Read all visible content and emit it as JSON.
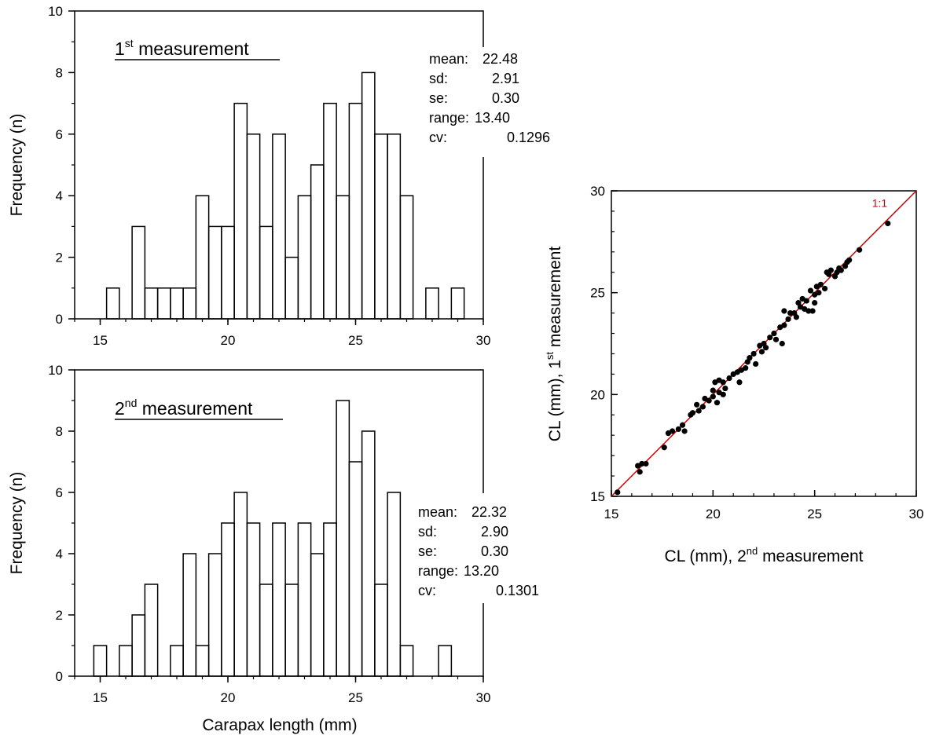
{
  "chart_data": [
    {
      "type": "histogram",
      "title": "1st measurement",
      "title_main": "1",
      "title_sup": "st",
      "title_rest": " measurement",
      "xlabel": "",
      "ylabel": "Frequency (n)",
      "xlim": [
        14,
        30
      ],
      "ylim": [
        0,
        10
      ],
      "xticks": [
        "15",
        "20",
        "25",
        "30"
      ],
      "yticks": [
        "0",
        "2",
        "4",
        "6",
        "8",
        "10"
      ],
      "bin_width": 0.5,
      "bin_start": 15.25,
      "counts": [
        1,
        0,
        3,
        1,
        1,
        1,
        1,
        4,
        3,
        3,
        7,
        6,
        3,
        6,
        2,
        4,
        5,
        7,
        4,
        7,
        8,
        6,
        6,
        4,
        0,
        1,
        0,
        1
      ],
      "stats": {
        "mean_label": "mean:",
        "mean": "22.48",
        "sd_label": "sd:",
        "sd": "2.91",
        "se_label": "se:",
        "se": "0.30",
        "range_label": "range:",
        "range": "13.40",
        "cv_label": "cv:",
        "cv": "0.1296"
      }
    },
    {
      "type": "histogram",
      "title": "2nd measurement",
      "title_main": "2",
      "title_sup": "nd",
      "title_rest": " measurement",
      "xlabel": "Carapax length (mm)",
      "ylabel": "Frequency (n)",
      "xlim": [
        14,
        30
      ],
      "ylim": [
        0,
        10
      ],
      "xticks": [
        "15",
        "20",
        "25",
        "30"
      ],
      "yticks": [
        "0",
        "2",
        "4",
        "6",
        "8",
        "10"
      ],
      "bin_width": 0.5,
      "bin_start": 14.75,
      "counts": [
        1,
        0,
        1,
        2,
        3,
        0,
        1,
        4,
        1,
        4,
        5,
        6,
        5,
        3,
        5,
        3,
        5,
        4,
        5,
        9,
        7,
        8,
        3,
        6,
        1,
        0,
        0,
        1
      ],
      "stats": {
        "mean_label": "mean:",
        "mean": "22.32",
        "sd_label": "sd:",
        "sd": "2.90",
        "se_label": "se:",
        "se": "0.30",
        "range_label": "range:",
        "range": "13.20",
        "cv_label": "cv:",
        "cv": "0.1301"
      }
    },
    {
      "type": "scatter",
      "xlabel": "CL (mm), 2nd measurement",
      "xlabel_main": "CL (mm), 2",
      "xlabel_sup": "nd",
      "xlabel_rest": " measurement",
      "ylabel": "CL (mm), 1st measurement",
      "ylabel_main": "CL (mm), 1",
      "ylabel_sup": "st",
      "ylabel_rest": " measurement",
      "xlim": [
        15,
        30
      ],
      "ylim": [
        15,
        30
      ],
      "xticks": [
        "15",
        "20",
        "25",
        "30"
      ],
      "yticks": [
        "15",
        "20",
        "25",
        "30"
      ],
      "reference_line": {
        "label": "1:1",
        "color": "#cc0000"
      },
      "point_color": "#000000",
      "points": [
        [
          15.3,
          15.2
        ],
        [
          16.3,
          16.5
        ],
        [
          16.4,
          16.2
        ],
        [
          16.5,
          16.6
        ],
        [
          16.7,
          16.6
        ],
        [
          17.6,
          17.4
        ],
        [
          17.8,
          18.1
        ],
        [
          18.0,
          18.2
        ],
        [
          18.3,
          18.3
        ],
        [
          18.5,
          18.5
        ],
        [
          18.6,
          18.2
        ],
        [
          18.9,
          19.0
        ],
        [
          19.0,
          19.1
        ],
        [
          19.2,
          19.5
        ],
        [
          19.3,
          19.2
        ],
        [
          19.5,
          19.4
        ],
        [
          19.6,
          19.8
        ],
        [
          19.8,
          19.7
        ],
        [
          20.0,
          20.2
        ],
        [
          20.0,
          19.9
        ],
        [
          20.1,
          20.6
        ],
        [
          20.2,
          19.6
        ],
        [
          20.3,
          20.1
        ],
        [
          20.3,
          20.7
        ],
        [
          20.5,
          20.6
        ],
        [
          20.5,
          20.0
        ],
        [
          20.6,
          20.3
        ],
        [
          20.8,
          20.8
        ],
        [
          21.0,
          21.0
        ],
        [
          21.2,
          21.1
        ],
        [
          21.3,
          20.6
        ],
        [
          21.4,
          21.2
        ],
        [
          21.6,
          21.3
        ],
        [
          21.7,
          21.6
        ],
        [
          21.8,
          21.8
        ],
        [
          22.0,
          22.0
        ],
        [
          22.1,
          21.5
        ],
        [
          22.3,
          22.4
        ],
        [
          22.4,
          22.1
        ],
        [
          22.5,
          22.5
        ],
        [
          22.6,
          22.3
        ],
        [
          22.8,
          22.8
        ],
        [
          23.0,
          23.0
        ],
        [
          23.1,
          22.7
        ],
        [
          23.3,
          23.3
        ],
        [
          23.4,
          22.5
        ],
        [
          23.5,
          23.4
        ],
        [
          23.5,
          24.1
        ],
        [
          23.7,
          23.7
        ],
        [
          23.8,
          24.0
        ],
        [
          24.0,
          24.0
        ],
        [
          24.1,
          23.8
        ],
        [
          24.2,
          24.5
        ],
        [
          24.3,
          24.3
        ],
        [
          24.4,
          24.7
        ],
        [
          24.5,
          24.2
        ],
        [
          24.6,
          24.6
        ],
        [
          24.7,
          24.1
        ],
        [
          24.8,
          25.1
        ],
        [
          24.9,
          24.1
        ],
        [
          25.0,
          24.9
        ],
        [
          25.0,
          24.5
        ],
        [
          25.1,
          25.3
        ],
        [
          25.2,
          25.0
        ],
        [
          25.3,
          25.4
        ],
        [
          25.5,
          25.2
        ],
        [
          25.6,
          26.0
        ],
        [
          25.7,
          25.9
        ],
        [
          25.8,
          26.1
        ],
        [
          26.0,
          25.8
        ],
        [
          26.1,
          26.0
        ],
        [
          26.2,
          26.2
        ],
        [
          26.3,
          26.1
        ],
        [
          26.5,
          26.3
        ],
        [
          26.6,
          26.5
        ],
        [
          26.7,
          26.6
        ],
        [
          27.2,
          27.1
        ],
        [
          28.6,
          28.4
        ]
      ]
    }
  ]
}
